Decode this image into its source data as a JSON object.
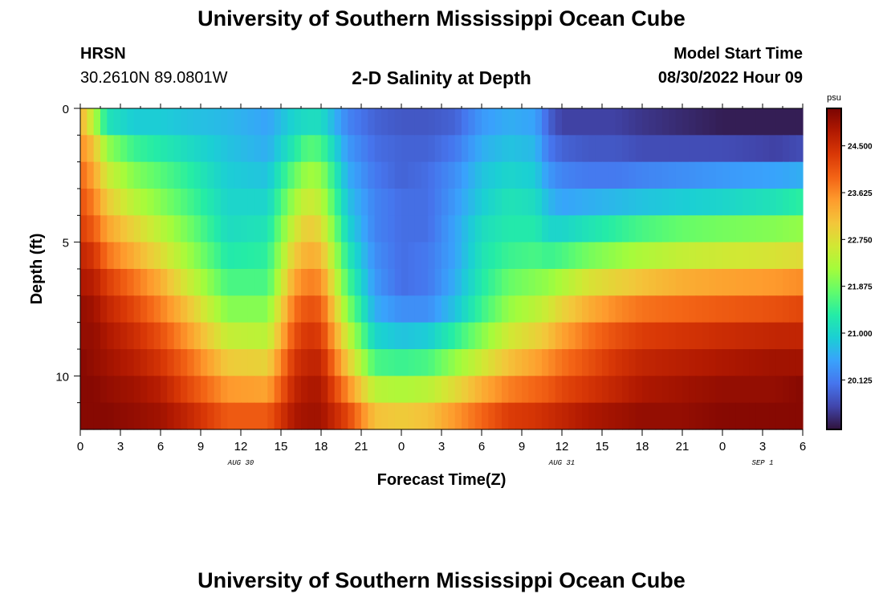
{
  "header": {
    "title": "University of Southern Mississippi Ocean Cube",
    "station": "HRSN",
    "coords": "30.2610N  89.0801W",
    "subtitle": "2-D Salinity at Depth",
    "start_label": "Model Start Time",
    "start_value": "08/30/2022 Hour 09"
  },
  "footer": {
    "title": "University of Southern Mississippi Ocean Cube"
  },
  "chart_data": {
    "type": "heatmap",
    "title": "2-D Salinity at Depth",
    "xlabel": "Forecast Time(Z)",
    "ylabel": "Depth (ft)",
    "x_range_hours": [
      0,
      54
    ],
    "x_tick_labels": [
      "0",
      "3",
      "6",
      "9",
      "12",
      "15",
      "18",
      "21",
      "0",
      "3",
      "6",
      "9",
      "12",
      "15",
      "18",
      "21",
      "0",
      "3",
      "6"
    ],
    "date_labels": [
      {
        "label": "AUG 30",
        "hour": 12
      },
      {
        "label": "AUG 31",
        "hour": 36
      },
      {
        "label": "SEP 1",
        "hour": 51
      }
    ],
    "y_range_ft": [
      0,
      12
    ],
    "y_tick_labels": [
      "0",
      "5",
      "10"
    ],
    "colorbar": {
      "unit": "psu",
      "range": [
        19.2,
        25.2
      ],
      "tick_labels": [
        "24.500",
        "23.625",
        "22.750",
        "21.875",
        "21.000",
        "20.125"
      ],
      "colors": [
        "#30123b",
        "#4145ab",
        "#4675ed",
        "#39a2fc",
        "#1bcfd4",
        "#24eca6",
        "#61fc6c",
        "#a4fc3b",
        "#d1e834",
        "#f3c63a",
        "#fe9b2d",
        "#f36315",
        "#d93806",
        "#b11901",
        "#7a0402"
      ]
    },
    "depth_levels_ft": [
      0.5,
      1.5,
      2.5,
      3.5,
      4.5,
      5.5,
      6.5,
      7.5,
      8.5,
      9.5,
      10.5,
      11.5
    ],
    "time_hours": [
      0,
      1,
      2,
      4,
      6,
      8,
      11,
      14,
      16,
      17,
      18,
      20,
      22,
      24,
      26,
      28,
      30,
      32,
      34,
      35,
      36,
      38,
      40,
      42,
      45,
      48,
      52,
      54
    ],
    "salinity_psu": [
      [
        23.3,
        22.4,
        21.2,
        20.9,
        20.9,
        20.8,
        20.7,
        20.5,
        21.0,
        21.1,
        21.1,
        20.2,
        19.9,
        19.8,
        19.8,
        19.9,
        20.4,
        20.6,
        20.5,
        19.9,
        19.6,
        19.6,
        19.6,
        19.5,
        19.4,
        19.3,
        19.3,
        19.3
      ],
      [
        23.6,
        23.1,
        22.1,
        21.5,
        21.3,
        21.1,
        20.8,
        20.6,
        21.3,
        21.7,
        21.6,
        20.4,
        20.0,
        19.9,
        19.9,
        20.1,
        20.6,
        20.8,
        20.7,
        20.1,
        19.9,
        19.8,
        19.8,
        19.7,
        19.7,
        19.7,
        19.6,
        19.7
      ],
      [
        23.9,
        23.4,
        22.6,
        22.0,
        21.7,
        21.4,
        20.9,
        20.8,
        21.8,
        22.2,
        22.1,
        20.6,
        20.1,
        19.9,
        20.0,
        20.3,
        20.8,
        21.0,
        20.9,
        20.4,
        20.2,
        20.1,
        20.1,
        20.2,
        20.3,
        20.4,
        20.5,
        20.6
      ],
      [
        24.1,
        23.7,
        23.0,
        22.4,
        22.0,
        21.6,
        21.0,
        21.0,
        22.2,
        22.6,
        22.4,
        20.8,
        20.2,
        20.0,
        20.0,
        20.4,
        20.9,
        21.2,
        21.1,
        20.7,
        20.5,
        20.6,
        20.7,
        20.8,
        20.9,
        21.0,
        21.2,
        21.4
      ],
      [
        24.3,
        24.0,
        23.4,
        22.9,
        22.4,
        21.9,
        21.1,
        21.2,
        22.6,
        23.0,
        22.8,
        21.0,
        20.2,
        20.0,
        20.0,
        20.5,
        21.1,
        21.3,
        21.3,
        21.0,
        21.0,
        21.2,
        21.4,
        21.6,
        21.8,
        21.9,
        22.0,
        22.1
      ],
      [
        24.6,
        24.4,
        23.8,
        23.3,
        22.8,
        22.2,
        21.3,
        21.4,
        23.0,
        23.3,
        23.2,
        21.3,
        20.3,
        20.0,
        20.1,
        20.5,
        21.2,
        21.5,
        21.6,
        21.5,
        21.6,
        21.9,
        22.1,
        22.3,
        22.5,
        22.6,
        22.7,
        22.8
      ],
      [
        24.8,
        24.7,
        24.3,
        23.8,
        23.3,
        22.6,
        21.6,
        21.6,
        23.4,
        23.7,
        23.6,
        21.6,
        20.4,
        20.0,
        20.1,
        20.6,
        21.3,
        21.8,
        22.0,
        22.1,
        22.3,
        22.7,
        22.9,
        23.1,
        23.3,
        23.4,
        23.5,
        23.6
      ],
      [
        25.0,
        24.9,
        24.6,
        24.2,
        23.7,
        23.1,
        22.0,
        22.0,
        23.8,
        24.1,
        24.0,
        22.0,
        20.6,
        20.3,
        20.3,
        20.8,
        21.5,
        22.1,
        22.4,
        22.6,
        22.9,
        23.3,
        23.6,
        23.8,
        23.9,
        24.0,
        24.1,
        24.2
      ],
      [
        25.0,
        25.0,
        24.8,
        24.5,
        24.1,
        23.5,
        22.5,
        22.4,
        24.1,
        24.4,
        24.3,
        22.5,
        21.0,
        20.8,
        20.9,
        21.4,
        22.0,
        22.6,
        22.9,
        23.1,
        23.4,
        23.8,
        24.1,
        24.3,
        24.4,
        24.5,
        24.6,
        24.6
      ],
      [
        25.1,
        25.0,
        24.9,
        24.7,
        24.4,
        23.9,
        23.0,
        22.9,
        24.4,
        24.6,
        24.6,
        23.0,
        21.6,
        21.5,
        21.6,
        22.1,
        22.6,
        23.1,
        23.4,
        23.6,
        23.8,
        24.1,
        24.4,
        24.6,
        24.7,
        24.8,
        24.9,
        24.9
      ],
      [
        25.1,
        25.1,
        25.0,
        24.9,
        24.7,
        24.2,
        23.5,
        23.4,
        24.6,
        24.8,
        24.8,
        23.6,
        22.4,
        22.3,
        22.4,
        22.8,
        23.3,
        23.7,
        23.9,
        24.0,
        24.2,
        24.4,
        24.6,
        24.8,
        24.9,
        25.0,
        25.0,
        25.1
      ],
      [
        25.1,
        25.1,
        25.1,
        25.0,
        24.9,
        24.6,
        24.0,
        24.0,
        24.8,
        24.9,
        24.9,
        24.2,
        23.1,
        23.0,
        23.1,
        23.5,
        23.9,
        24.3,
        24.4,
        24.5,
        24.6,
        24.8,
        24.9,
        25.0,
        25.0,
        25.1,
        25.1,
        25.1
      ]
    ]
  }
}
